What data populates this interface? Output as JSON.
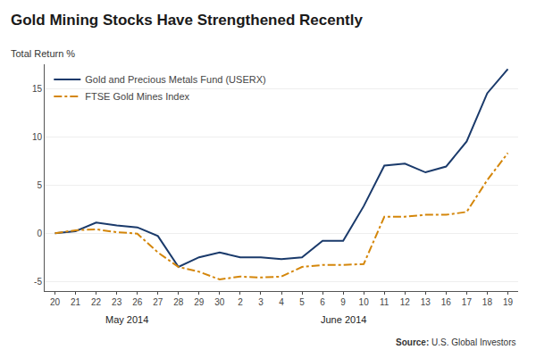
{
  "chart_data": {
    "type": "line",
    "title": "Gold Mining Stocks Have Strengthened Recently",
    "y_label": "Total Return %",
    "categories": [
      "20",
      "21",
      "22",
      "23",
      "26",
      "27",
      "28",
      "29",
      "30",
      "2",
      "3",
      "4",
      "5",
      "6",
      "9",
      "10",
      "11",
      "12",
      "13",
      "16",
      "17",
      "18",
      "19"
    ],
    "series": [
      {
        "name": "Gold and Precious Metals Fund (USERX)",
        "color": "#1a3a6b",
        "line_style": "solid",
        "values": [
          0.0,
          0.2,
          1.1,
          0.8,
          0.6,
          -0.3,
          -3.5,
          -2.5,
          -2.0,
          -2.5,
          -2.5,
          -2.7,
          -2.5,
          -0.8,
          -0.8,
          2.8,
          7.0,
          7.2,
          6.3,
          6.9,
          9.5,
          14.5,
          17.0
        ]
      },
      {
        "name": "FTSE Gold Mines Index",
        "color": "#d4860a",
        "line_style": "dashdot",
        "values": [
          0.0,
          0.3,
          0.4,
          0.1,
          -0.05,
          -2.0,
          -3.5,
          -4.0,
          -4.8,
          -4.5,
          -4.6,
          -4.5,
          -3.5,
          -3.3,
          -3.3,
          -3.2,
          1.7,
          1.7,
          1.9,
          1.9,
          2.2,
          5.5,
          8.3
        ]
      }
    ],
    "annotations": [
      {
        "text": "May 2014",
        "x": 3.5
      },
      {
        "text": "June 2014",
        "x": 14.0
      }
    ],
    "source": {
      "label": "Source:",
      "text": "U.S. Global Investors"
    },
    "ylim": [
      -6,
      17.5
    ],
    "yticks": [
      -5,
      0,
      5,
      10,
      15
    ],
    "grid": "y",
    "legend": "upper left"
  }
}
